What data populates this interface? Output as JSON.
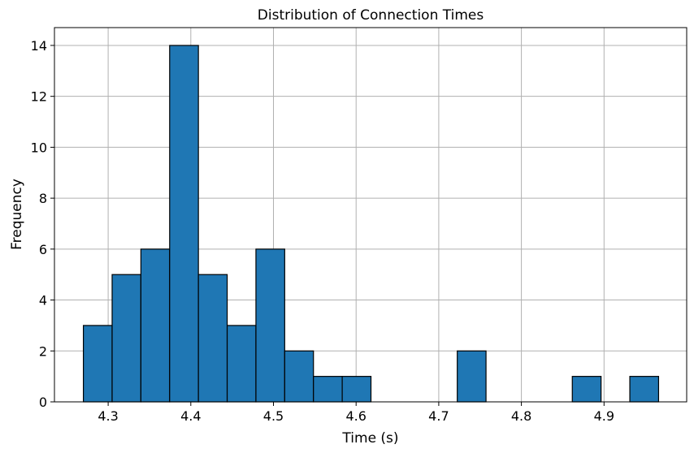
{
  "chart_data": {
    "type": "bar",
    "title": "Distribution of Connection Times",
    "xlabel": "Time (s)",
    "ylabel": "Frequency",
    "bin_edges": [
      4.27,
      4.3048,
      4.3396,
      4.3744,
      4.4092,
      4.444,
      4.4788,
      4.5136,
      4.5484,
      4.5832,
      4.618,
      4.6528,
      4.6876,
      4.7224,
      4.7572,
      4.792,
      4.8268,
      4.8616,
      4.8964,
      4.9312,
      4.966
    ],
    "values": [
      3,
      5,
      6,
      14,
      5,
      3,
      6,
      2,
      1,
      1,
      0,
      0,
      0,
      2,
      0,
      0,
      0,
      1,
      0,
      1
    ],
    "xlim": [
      4.235,
      5.0
    ],
    "ylim": [
      0,
      14.7
    ],
    "xticks": [
      4.3,
      4.4,
      4.5,
      4.6,
      4.7,
      4.8,
      4.9
    ],
    "xtick_labels": [
      "4.3",
      "4.4",
      "4.5",
      "4.6",
      "4.7",
      "4.8",
      "4.9"
    ],
    "yticks": [
      0,
      2,
      4,
      6,
      8,
      10,
      12,
      14
    ],
    "ytick_labels": [
      "0",
      "2",
      "4",
      "6",
      "8",
      "10",
      "12",
      "14"
    ],
    "grid": true,
    "bar_color": "#1f77b4",
    "edge_color": "#000000",
    "grid_color": "#b0b0b0"
  }
}
